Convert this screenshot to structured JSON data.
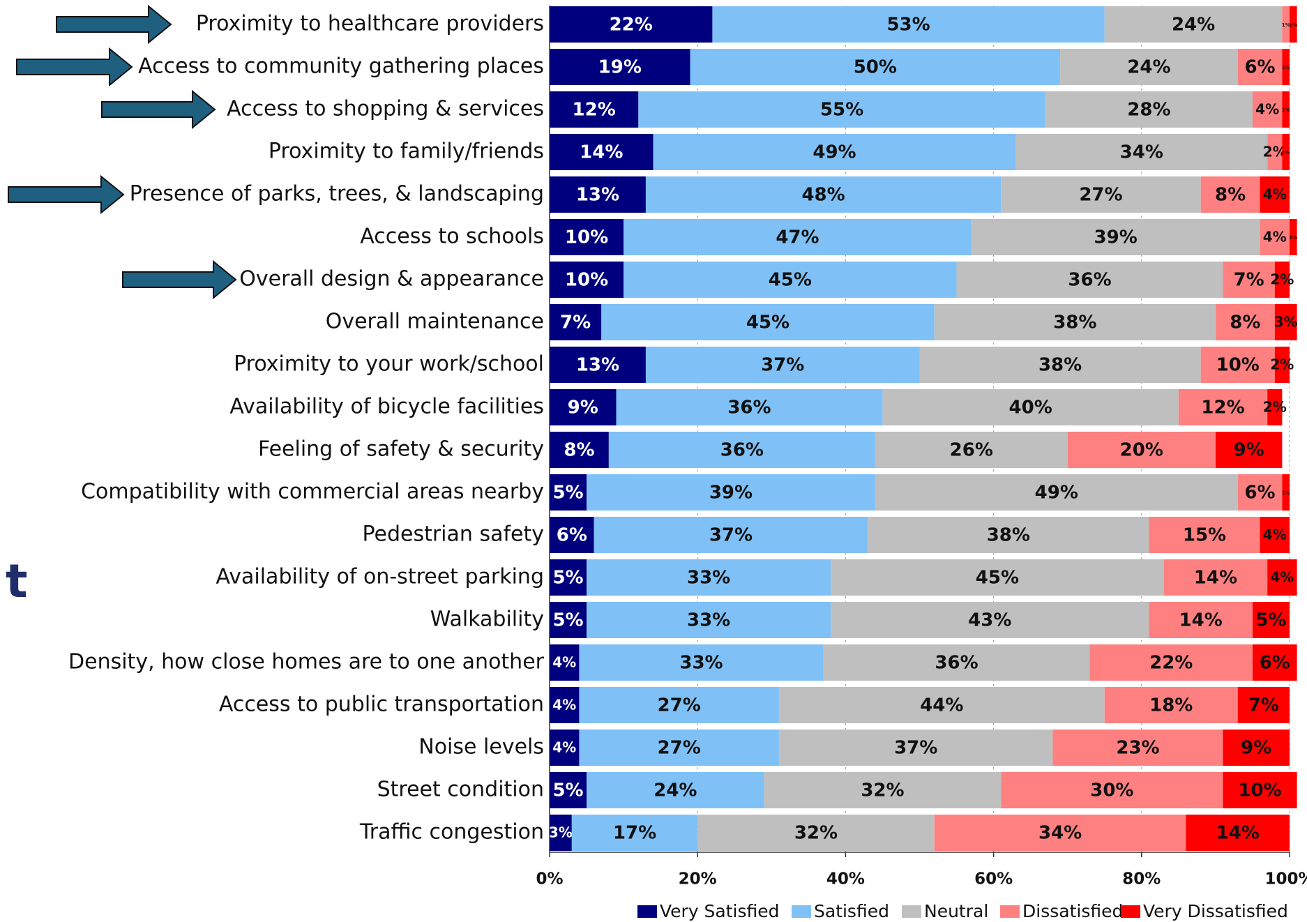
{
  "chart_data": {
    "type": "stacked_barh",
    "side_text": "t",
    "categories": [
      "Proximity to healthcare providers",
      "Access to community gathering places",
      "Access to shopping & services",
      "Proximity to family/friends",
      "Presence of parks, trees, & landscaping",
      "Access to schools",
      "Overall design & appearance",
      "Overall maintenance",
      "Proximity to your work/school",
      "Availability of bicycle facilities",
      "Feeling of safety & security",
      "Compatibility with commercial areas nearby",
      "Pedestrian safety",
      "Availability of on-street parking",
      "Walkability",
      "Density, how close homes are to one another",
      "Access to public transportation",
      "Noise levels",
      "Street condition",
      "Traffic congestion"
    ],
    "series": [
      {
        "name": "Very Satisfied",
        "color": "#00007f",
        "values": [
          22,
          19,
          12,
          14,
          13,
          10,
          10,
          7,
          13,
          9,
          8,
          5,
          6,
          5,
          5,
          4,
          4,
          4,
          5,
          3
        ],
        "value_labels": [
          "22%",
          "19%",
          "12%",
          "14%",
          "13%",
          "10%",
          "10%",
          "7%",
          "13%",
          "9%",
          "8%",
          "5%",
          "6%",
          "5%",
          "5%",
          "4%",
          "4%",
          "4%",
          "5%",
          "3%"
        ]
      },
      {
        "name": "Satisfied",
        "color": "#7fc1f7",
        "values": [
          53,
          50,
          55,
          49,
          48,
          47,
          45,
          45,
          37,
          36,
          36,
          39,
          37,
          33,
          33,
          33,
          27,
          27,
          24,
          17
        ],
        "value_labels": [
          "53%",
          "50%",
          "55%",
          "49%",
          "48%",
          "47%",
          "45%",
          "45%",
          "37%",
          "36%",
          "36%",
          "39%",
          "37%",
          "33%",
          "33%",
          "33%",
          "27%",
          "27%",
          "24%",
          "17%"
        ]
      },
      {
        "name": "Neutral",
        "color": "#bfbfbf",
        "values": [
          24,
          24,
          28,
          34,
          27,
          39,
          36,
          38,
          38,
          40,
          26,
          49,
          38,
          45,
          43,
          36,
          44,
          37,
          32,
          32
        ],
        "value_labels": [
          "24%",
          "24%",
          "28%",
          "34%",
          "27%",
          "39%",
          "36%",
          "38%",
          "38%",
          "40%",
          "26%",
          "49%",
          "38%",
          "45%",
          "43%",
          "36%",
          "44%",
          "37%",
          "32%",
          "32%"
        ]
      },
      {
        "name": "Dissatisfied",
        "color": "#ff8080",
        "values": [
          1,
          6,
          4,
          2,
          8,
          4,
          7,
          8,
          10,
          12,
          20,
          6,
          15,
          14,
          14,
          22,
          18,
          23,
          30,
          34
        ],
        "value_labels": [
          "1%",
          "6%",
          "4%",
          "2%",
          "8%",
          "4%",
          "7%",
          "8%",
          "10%",
          "12%",
          "20%",
          "6%",
          "15%",
          "14%",
          "14%",
          "22%",
          "18%",
          "23%",
          "30%",
          "34%"
        ]
      },
      {
        "name": "Very Dissatisfied",
        "color": "#ff0000",
        "values": [
          1,
          1,
          1,
          1,
          4,
          1,
          2,
          3,
          2,
          2,
          9,
          1,
          4,
          4,
          5,
          6,
          7,
          9,
          10,
          14
        ],
        "value_labels": [
          "1%",
          "1%",
          "1%",
          "1%",
          "4%",
          "1%",
          "2%",
          "3%",
          "2%",
          "2%",
          "9%",
          "1%",
          "4%",
          "4%",
          "5%",
          "6%",
          "7%",
          "9%",
          "10%",
          "14%"
        ]
      }
    ],
    "xlim": [
      0,
      100
    ],
    "xticks": [
      {
        "value": 0,
        "label": "0%"
      },
      {
        "value": 20,
        "label": "20%"
      },
      {
        "value": 40,
        "label": "40%"
      },
      {
        "value": 60,
        "label": "60%"
      },
      {
        "value": 80,
        "label": "80%"
      },
      {
        "value": 100,
        "label": "100%"
      }
    ],
    "grid": true,
    "legend": "bottom"
  }
}
